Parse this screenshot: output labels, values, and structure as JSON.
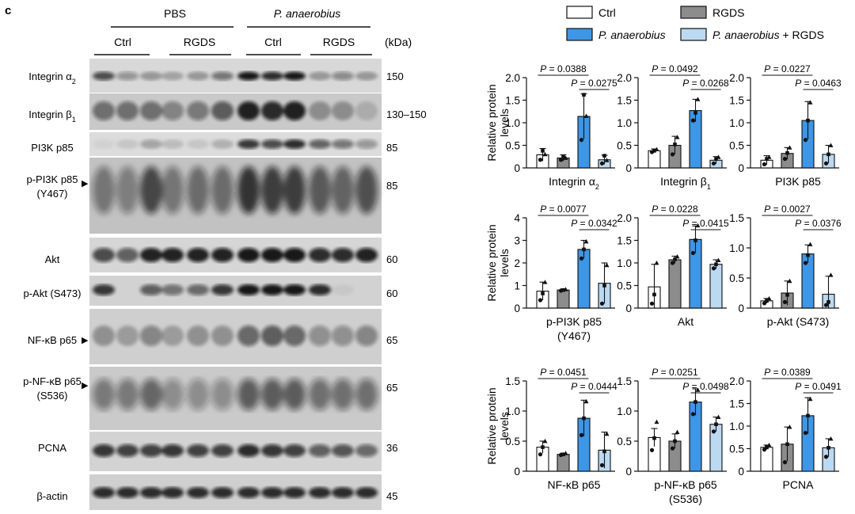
{
  "panel_label": "c",
  "blot": {
    "group_labels": [
      "PBS",
      "P. anaerobius"
    ],
    "subgroup_labels": [
      "Ctrl",
      "RGDS",
      "Ctrl",
      "RGDS"
    ],
    "kda_header": "(kDa)",
    "arrow_marker": "▶",
    "rows": [
      {
        "label": "Integrin α2",
        "label_html_base": "Integrin α",
        "label_sub": "2",
        "kda": "150"
      },
      {
        "label": "Integrin β1",
        "label_html_base": "Integrin β",
        "label_sub": "1",
        "kda": "130–150"
      },
      {
        "label": "PI3K p85",
        "kda": "85"
      },
      {
        "label": "p-PI3K p85",
        "label2": "(Y467)",
        "kda": "85",
        "arrow": true
      },
      {
        "label": "Akt",
        "kda": "60"
      },
      {
        "label": "p-Akt (S473)",
        "kda": "60"
      },
      {
        "label": "NF-κB p65",
        "kda": "65",
        "arrow": true
      },
      {
        "label": "p-NF-κB p65",
        "label2": "(S536)",
        "kda": "65",
        "arrow": true
      },
      {
        "label": "PCNA",
        "kda": "36"
      },
      {
        "label": "β-actin",
        "kda": "45"
      }
    ]
  },
  "legend": {
    "items": [
      {
        "label": "Ctrl",
        "color": "#ffffff"
      },
      {
        "label": "RGDS",
        "color": "#8c8c8c"
      },
      {
        "label": "P. anaerobius",
        "color": "#3d96e6"
      },
      {
        "label": "P. anaerobius + RGDS",
        "color": "#bcd9f2"
      }
    ]
  },
  "y_axis_title": "Relative protein levels",
  "y_axis_title_lines": [
    "Relative protein",
    "levels"
  ],
  "chart_data": [
    {
      "type": "bar",
      "xlabel": "Integrin α2",
      "xlabel_base": "Integrin α",
      "xlabel_sub": "2",
      "ylim": [
        0,
        2.0
      ],
      "yticks": [
        0,
        0.5,
        1.0,
        1.5,
        2.0
      ],
      "ytick_labels": [
        "0",
        "0.5",
        "1.0",
        "1.5",
        "2.0"
      ],
      "categories": [
        "Ctrl",
        "RGDS",
        "P. anaerobius",
        "P. anaerobius + RGDS"
      ],
      "values": [
        0.29,
        0.22,
        1.14,
        0.18
      ],
      "errors": [
        0.14,
        0.07,
        0.5,
        0.1
      ],
      "points": [
        [
          0.18,
          0.38,
          0.3
        ],
        [
          0.18,
          0.25,
          0.22
        ],
        [
          0.62,
          1.62,
          1.15
        ],
        [
          0.1,
          0.27,
          0.17
        ]
      ],
      "comparisons": [
        {
          "p": "P = 0.0388",
          "from": 0,
          "to": 2
        },
        {
          "p": "P = 0.0275",
          "from": 2,
          "to": 3
        }
      ]
    },
    {
      "type": "bar",
      "xlabel": "Integrin β1",
      "xlabel_base": "Integrin β",
      "xlabel_sub": "1",
      "ylim": [
        0,
        2.0
      ],
      "yticks": [
        0,
        0.5,
        1.0,
        1.5,
        2.0
      ],
      "ytick_labels": [
        "0",
        "0.5",
        "1.0",
        "1.5",
        "2.0"
      ],
      "categories": [
        "Ctrl",
        "RGDS",
        "P. anaerobius",
        "P. anaerobius + RGDS"
      ],
      "values": [
        0.38,
        0.5,
        1.27,
        0.17
      ],
      "errors": [
        0.04,
        0.2,
        0.25,
        0.08
      ],
      "points": [
        [
          0.35,
          0.38,
          0.41
        ],
        [
          0.3,
          0.52,
          0.68
        ],
        [
          1.05,
          1.22,
          1.52
        ],
        [
          0.1,
          0.2,
          0.24
        ]
      ],
      "comparisons": [
        {
          "p": "P = 0.0492",
          "from": 0,
          "to": 2
        },
        {
          "p": "P = 0.0268",
          "from": 2,
          "to": 3
        }
      ]
    },
    {
      "type": "bar",
      "xlabel": "PI3K p85",
      "ylim": [
        0,
        2.0
      ],
      "yticks": [
        0,
        0.5,
        1.0,
        1.5,
        2.0
      ],
      "ytick_labels": [
        "0",
        "0.5",
        "1.0",
        "1.5",
        "2.0"
      ],
      "categories": [
        "Ctrl",
        "RGDS",
        "P. anaerobius",
        "P. anaerobius + RGDS"
      ],
      "values": [
        0.17,
        0.32,
        1.05,
        0.3
      ],
      "errors": [
        0.1,
        0.13,
        0.42,
        0.2
      ],
      "points": [
        [
          0.08,
          0.2,
          0.24
        ],
        [
          0.2,
          0.33,
          0.45
        ],
        [
          0.62,
          1.05,
          1.45
        ],
        [
          0.1,
          0.3,
          0.5
        ]
      ],
      "comparisons": [
        {
          "p": "P = 0.0227",
          "from": 0,
          "to": 2
        },
        {
          "p": "P = 0.0463",
          "from": 2,
          "to": 3
        }
      ]
    },
    {
      "type": "bar",
      "xlabel": "p-PI3K p85",
      "xlabel2": "(Y467)",
      "ylim": [
        0,
        4
      ],
      "yticks": [
        0,
        1,
        2,
        3,
        4
      ],
      "ytick_labels": [
        "0",
        "1",
        "2",
        "3",
        "4"
      ],
      "categories": [
        "Ctrl",
        "RGDS",
        "P. anaerobius",
        "P. anaerobius + RGDS"
      ],
      "values": [
        0.75,
        0.8,
        2.6,
        1.1
      ],
      "errors": [
        0.4,
        0.05,
        0.4,
        0.9
      ],
      "points": [
        [
          0.35,
          0.65,
          1.15
        ],
        [
          0.77,
          0.8,
          0.83
        ],
        [
          2.2,
          2.6,
          2.95
        ],
        [
          0.2,
          1.0,
          1.9
        ]
      ],
      "comparisons": [
        {
          "p": "P = 0.0077",
          "from": 0,
          "to": 2
        },
        {
          "p": "P = 0.0342",
          "from": 2,
          "to": 3
        }
      ]
    },
    {
      "type": "bar",
      "xlabel": "Akt",
      "ylim": [
        0,
        2.0
      ],
      "yticks": [
        0,
        0.5,
        1.0,
        1.5,
        2.0
      ],
      "ytick_labels": [
        "0",
        "0.5",
        "1.0",
        "1.5",
        "2.0"
      ],
      "categories": [
        "Ctrl",
        "RGDS",
        "P. anaerobius",
        "P. anaerobius + RGDS"
      ],
      "values": [
        0.47,
        1.07,
        1.52,
        0.97
      ],
      "errors": [
        0.5,
        0.08,
        0.3,
        0.1
      ],
      "points": [
        [
          0.1,
          0.3,
          1.0
        ],
        [
          1.0,
          1.08,
          1.14
        ],
        [
          1.22,
          1.5,
          1.83
        ],
        [
          0.88,
          0.97,
          1.06
        ]
      ],
      "comparisons": [
        {
          "p": "P = 0.0228",
          "from": 0,
          "to": 2
        },
        {
          "p": "P = 0.0415",
          "from": 2,
          "to": 3
        }
      ]
    },
    {
      "type": "bar",
      "xlabel": "p-Akt (S473)",
      "ylim": [
        0,
        1.5
      ],
      "yticks": [
        0,
        0.5,
        1.0,
        1.5
      ],
      "ytick_labels": [
        "0",
        "0.5",
        "1.0",
        "1.5"
      ],
      "categories": [
        "Ctrl",
        "RGDS",
        "P. anaerobius",
        "P. anaerobius + RGDS"
      ],
      "values": [
        0.12,
        0.25,
        0.9,
        0.23
      ],
      "errors": [
        0.04,
        0.2,
        0.15,
        0.3
      ],
      "points": [
        [
          0.08,
          0.12,
          0.16
        ],
        [
          0.1,
          0.22,
          0.45
        ],
        [
          0.75,
          0.88,
          1.06
        ],
        [
          0.05,
          0.1,
          0.55
        ]
      ],
      "comparisons": [
        {
          "p": "P = 0.0027",
          "from": 0,
          "to": 2
        },
        {
          "p": "P = 0.0376",
          "from": 2,
          "to": 3
        }
      ]
    },
    {
      "type": "bar",
      "xlabel": "NF-κB p65",
      "ylim": [
        0,
        1.5
      ],
      "yticks": [
        0,
        0.5,
        1.0,
        1.5
      ],
      "ytick_labels": [
        "0",
        "0.5",
        "1.0",
        "1.5"
      ],
      "categories": [
        "Ctrl",
        "RGDS",
        "P. anaerobius",
        "P. anaerobius + RGDS"
      ],
      "values": [
        0.4,
        0.28,
        0.88,
        0.35
      ],
      "errors": [
        0.1,
        0.02,
        0.3,
        0.3
      ],
      "points": [
        [
          0.28,
          0.4,
          0.5
        ],
        [
          0.27,
          0.28,
          0.3
        ],
        [
          0.6,
          0.88,
          1.16
        ],
        [
          0.1,
          0.33,
          0.62
        ]
      ],
      "comparisons": [
        {
          "p": "P = 0.0451",
          "from": 0,
          "to": 2
        },
        {
          "p": "P = 0.0444",
          "from": 2,
          "to": 3
        }
      ]
    },
    {
      "type": "bar",
      "xlabel": "p-NF-κB p65",
      "xlabel2": "(S536)",
      "ylim": [
        0,
        1.5
      ],
      "yticks": [
        0,
        0.5,
        1.0,
        1.5
      ],
      "ytick_labels": [
        "0",
        "0.5",
        "1.0",
        "1.5"
      ],
      "categories": [
        "Ctrl",
        "RGDS",
        "P. anaerobius",
        "P. anaerobius + RGDS"
      ],
      "values": [
        0.56,
        0.5,
        1.15,
        0.78
      ],
      "errors": [
        0.15,
        0.12,
        0.22,
        0.12
      ],
      "points": [
        [
          0.35,
          0.55,
          0.82
        ],
        [
          0.38,
          0.5,
          0.65
        ],
        [
          0.95,
          1.15,
          1.35
        ],
        [
          0.66,
          0.78,
          0.9
        ]
      ],
      "comparisons": [
        {
          "p": "P = 0.0251",
          "from": 0,
          "to": 2
        },
        {
          "p": "P = 0.0498",
          "from": 2,
          "to": 3
        }
      ]
    },
    {
      "type": "bar",
      "xlabel": "PCNA",
      "ylim": [
        0,
        2.0
      ],
      "yticks": [
        0,
        0.5,
        1.0,
        1.5,
        2.0
      ],
      "ytick_labels": [
        "0",
        "0.5",
        "1.0",
        "1.5",
        "2.0"
      ],
      "categories": [
        "Ctrl",
        "RGDS",
        "P. anaerobius",
        "P. anaerobius + RGDS"
      ],
      "values": [
        0.53,
        0.6,
        1.23,
        0.52
      ],
      "errors": [
        0.05,
        0.38,
        0.4,
        0.2
      ],
      "points": [
        [
          0.48,
          0.53,
          0.58
        ],
        [
          0.2,
          0.6,
          0.98
        ],
        [
          0.85,
          1.23,
          1.6
        ],
        [
          0.32,
          0.52,
          0.72
        ]
      ],
      "comparisons": [
        {
          "p": "P = 0.0389",
          "from": 0,
          "to": 2
        },
        {
          "p": "P = 0.0491",
          "from": 2,
          "to": 3
        }
      ]
    }
  ]
}
